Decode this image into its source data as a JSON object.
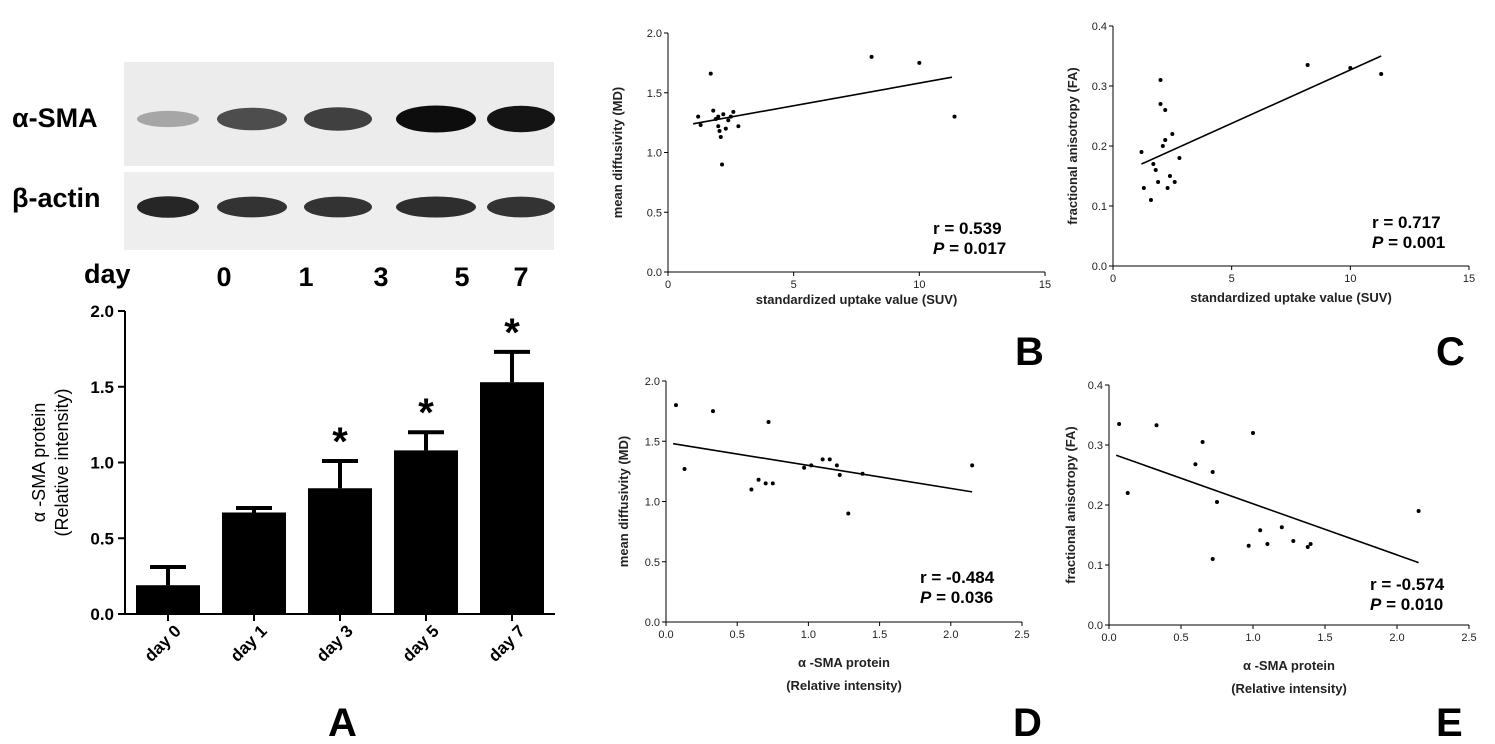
{
  "blot": {
    "row_labels": [
      "α-SMA",
      "β-actin"
    ],
    "day_label": "day",
    "day_numbers": [
      "0",
      "1",
      "3",
      "5",
      "7"
    ],
    "sma_band_intensity": [
      0.35,
      0.7,
      0.75,
      0.95,
      0.92
    ],
    "actin_band_intensity": [
      0.85,
      0.8,
      0.8,
      0.82,
      0.8
    ]
  },
  "panel_labels": {
    "A": "A",
    "B": "B",
    "C": "C",
    "D": "D",
    "E": "E"
  },
  "chart_data": [
    {
      "id": "A",
      "type": "bar",
      "categories": [
        "day 0",
        "day 1",
        "day 3",
        "day 5",
        "day 7"
      ],
      "values": [
        0.19,
        0.67,
        0.83,
        1.08,
        1.53
      ],
      "errors": [
        0.12,
        0.03,
        0.18,
        0.12,
        0.2
      ],
      "significance": [
        "",
        "",
        "*",
        "*",
        "*"
      ],
      "ylabel": "α -SMA protein",
      "ylabel2": "(Relative intensity)",
      "ylim": [
        0,
        2.0
      ],
      "yticks": [
        "0.0",
        "0.5",
        "1.0",
        "1.5",
        "2.0"
      ]
    },
    {
      "id": "B",
      "type": "scatter",
      "xlabel": "standardized uptake value (SUV)",
      "ylabel": "mean diffusivity (MD)",
      "xlim": [
        0,
        15
      ],
      "ylim": [
        0,
        2.0
      ],
      "xticks": [
        "0",
        "5",
        "10",
        "15"
      ],
      "yticks": [
        "0.0",
        "0.5",
        "1.0",
        "1.5",
        "2.0"
      ],
      "points": [
        [
          1.2,
          1.3
        ],
        [
          1.3,
          1.23
        ],
        [
          1.7,
          1.66
        ],
        [
          1.8,
          1.35
        ],
        [
          1.9,
          1.28
        ],
        [
          2.0,
          1.22
        ],
        [
          2.0,
          1.3
        ],
        [
          2.05,
          1.18
        ],
        [
          2.1,
          1.13
        ],
        [
          2.15,
          0.9
        ],
        [
          2.2,
          1.32
        ],
        [
          2.3,
          1.2
        ],
        [
          2.4,
          1.27
        ],
        [
          2.5,
          1.3
        ],
        [
          2.6,
          1.34
        ],
        [
          2.8,
          1.22
        ],
        [
          8.1,
          1.8
        ],
        [
          10.0,
          1.75
        ],
        [
          11.4,
          1.3
        ]
      ],
      "fit": {
        "x": [
          1.0,
          11.3
        ],
        "y": [
          1.24,
          1.63
        ]
      },
      "r_text": "r = 0.539",
      "p_sym": "P",
      "p_val": " = 0.017"
    },
    {
      "id": "C",
      "type": "scatter",
      "xlabel": "standardized uptake value (SUV)",
      "ylabel": "fractional anisotropy (FA)",
      "xlim": [
        0,
        15
      ],
      "ylim": [
        0,
        0.4
      ],
      "xticks": [
        "0",
        "5",
        "10",
        "15"
      ],
      "yticks": [
        "0.0",
        "0.1",
        "0.2",
        "0.3",
        "0.4"
      ],
      "points": [
        [
          1.2,
          0.19
        ],
        [
          1.3,
          0.13
        ],
        [
          1.6,
          0.11
        ],
        [
          1.7,
          0.17
        ],
        [
          1.8,
          0.16
        ],
        [
          1.9,
          0.14
        ],
        [
          2.0,
          0.31
        ],
        [
          2.0,
          0.27
        ],
        [
          2.1,
          0.2
        ],
        [
          2.2,
          0.26
        ],
        [
          2.3,
          0.13
        ],
        [
          2.4,
          0.15
        ],
        [
          2.5,
          0.22
        ],
        [
          2.6,
          0.14
        ],
        [
          2.8,
          0.18
        ],
        [
          2.2,
          0.21
        ],
        [
          8.2,
          0.335
        ],
        [
          10.0,
          0.33
        ],
        [
          11.3,
          0.32
        ]
      ],
      "fit": {
        "x": [
          1.2,
          11.3
        ],
        "y": [
          0.17,
          0.35
        ]
      },
      "r_text": "r = 0.717",
      "p_sym": "P",
      "p_val": " = 0.001"
    },
    {
      "id": "D",
      "type": "scatter",
      "xlabel": "α -SMA protein",
      "xlabel2": "(Relative intensity)",
      "ylabel": "mean diffusivity (MD)",
      "xlim": [
        0,
        2.5
      ],
      "ylim": [
        0,
        2.0
      ],
      "xticks": [
        "0.0",
        "0.5",
        "1.0",
        "1.5",
        "2.0",
        "2.5"
      ],
      "yticks": [
        "0.0",
        "0.5",
        "1.0",
        "1.5",
        "2.0"
      ],
      "points": [
        [
          0.07,
          1.8
        ],
        [
          0.13,
          1.27
        ],
        [
          0.33,
          1.75
        ],
        [
          0.6,
          1.1
        ],
        [
          0.65,
          1.18
        ],
        [
          0.7,
          1.15
        ],
        [
          0.72,
          1.66
        ],
        [
          0.75,
          1.15
        ],
        [
          0.97,
          1.28
        ],
        [
          1.02,
          1.3
        ],
        [
          1.1,
          1.35
        ],
        [
          1.15,
          1.35
        ],
        [
          1.2,
          1.3
        ],
        [
          1.22,
          1.22
        ],
        [
          1.28,
          0.9
        ],
        [
          1.38,
          1.23
        ],
        [
          2.15,
          1.3
        ]
      ],
      "fit": {
        "x": [
          0.05,
          2.15
        ],
        "y": [
          1.48,
          1.08
        ]
      },
      "r_text": "r = -0.484",
      "p_sym": "P",
      "p_val": " = 0.036"
    },
    {
      "id": "E",
      "type": "scatter",
      "xlabel": "α -SMA protein",
      "xlabel2": "(Relative intensity)",
      "ylabel": "fractional anisotropy (FA)",
      "xlim": [
        0,
        2.5
      ],
      "ylim": [
        0,
        0.4
      ],
      "xticks": [
        "0.0",
        "0.5",
        "1.0",
        "1.5",
        "2.0",
        "2.5"
      ],
      "yticks": [
        "0.0",
        "0.1",
        "0.2",
        "0.3",
        "0.4"
      ],
      "points": [
        [
          0.07,
          0.335
        ],
        [
          0.13,
          0.22
        ],
        [
          0.33,
          0.333
        ],
        [
          0.6,
          0.268
        ],
        [
          0.65,
          0.305
        ],
        [
          0.72,
          0.255
        ],
        [
          0.72,
          0.11
        ],
        [
          0.75,
          0.205
        ],
        [
          0.97,
          0.132
        ],
        [
          1.0,
          0.32
        ],
        [
          1.05,
          0.158
        ],
        [
          1.1,
          0.135
        ],
        [
          1.2,
          0.163
        ],
        [
          1.28,
          0.14
        ],
        [
          1.38,
          0.13
        ],
        [
          1.4,
          0.135
        ],
        [
          2.15,
          0.19
        ]
      ],
      "fit": {
        "x": [
          0.05,
          2.15
        ],
        "y": [
          0.283,
          0.104
        ]
      },
      "r_text": "r = -0.574",
      "p_sym": "P",
      "p_val": " = 0.010"
    }
  ]
}
